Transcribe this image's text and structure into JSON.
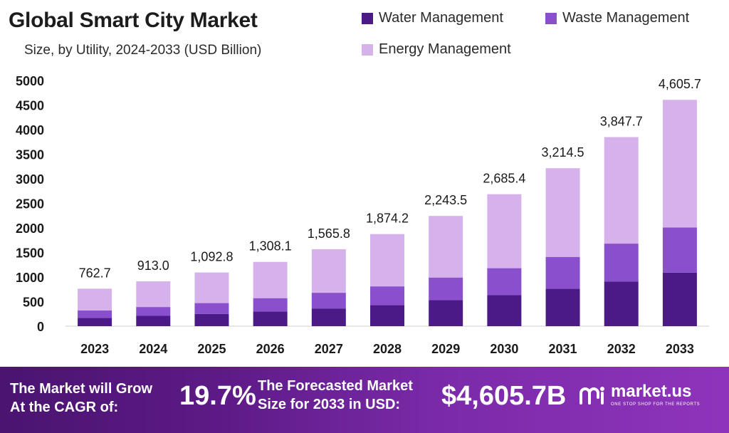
{
  "header": {
    "title": "Global Smart City Market",
    "subtitle": "Size, by Utility, 2024-2033 (USD Billion)"
  },
  "legend": [
    {
      "label": "Water Management",
      "color": "#4b1a86"
    },
    {
      "label": "Waste Management",
      "color": "#8a4fcc"
    },
    {
      "label": "Energy Management",
      "color": "#d6b2ec"
    }
  ],
  "chart_data": {
    "type": "bar",
    "stacked": true,
    "categories": [
      "2023",
      "2024",
      "2025",
      "2026",
      "2027",
      "2028",
      "2029",
      "2030",
      "2031",
      "2032",
      "2033"
    ],
    "series": [
      {
        "name": "Water Management",
        "color": "#4b1a86",
        "values": [
          170,
          210,
          250,
          300,
          360,
          430,
          530,
          630,
          760,
          910,
          1090
        ]
      },
      {
        "name": "Waste Management",
        "color": "#8a4fcc",
        "values": [
          150,
          180,
          220,
          270,
          320,
          380,
          460,
          550,
          650,
          770,
          920
        ]
      },
      {
        "name": "Energy Management",
        "color": "#d6b2ec",
        "values": [
          442.7,
          523.0,
          622.8,
          738.1,
          885.8,
          1064.2,
          1253.5,
          1505.4,
          1804.5,
          2167.7,
          2595.7
        ]
      }
    ],
    "totals": [
      "762.7",
      "913.0",
      "1,092.8",
      "1,308.1",
      "1,565.8",
      "1,874.2",
      "2,243.5",
      "2,685.4",
      "3,214.5",
      "3,847.7",
      "4,605.7"
    ],
    "total_values": [
      762.7,
      913.0,
      1092.8,
      1308.1,
      1565.8,
      1874.2,
      2243.5,
      2685.4,
      3214.5,
      3847.7,
      4605.7
    ],
    "yticks": [
      0,
      500,
      1000,
      1500,
      2000,
      2500,
      3000,
      3500,
      4000,
      4500,
      5000
    ],
    "ylim": [
      0,
      5000
    ],
    "grid": false
  },
  "footer": {
    "cagr_label_line1": "The Market will Grow",
    "cagr_label_line2": "At the CAGR of:",
    "cagr_value": "19.7%",
    "size_label_line1": "The Forecasted Market",
    "size_label_line2": "Size for 2033 in USD:",
    "size_value": "$4,605.7B",
    "brand_name": "market.us",
    "brand_tagline": "ONE STOP SHOP FOR THE REPORTS"
  }
}
